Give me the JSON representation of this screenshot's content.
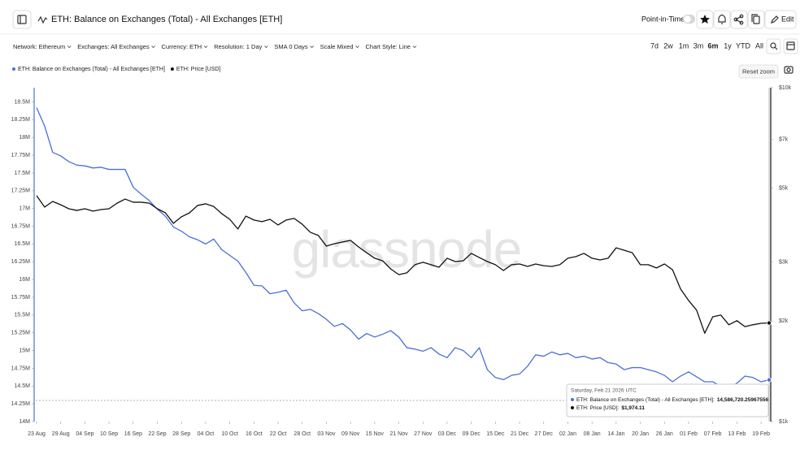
{
  "header": {
    "point_in_time": "Point-in-Time",
    "edit": "Edit"
  },
  "toolbar": {
    "filters": [
      "Network: Ethereum",
      "Exchanges: All Exchanges",
      "Currency: ETH",
      "Resolution: 1 Day",
      "SMA 0 Days",
      "Scale Mixed",
      "Chart Style: Line"
    ],
    "ranges": [
      "7d",
      "2w",
      "1m",
      "3m",
      "6m",
      "1y",
      "YTD",
      "All"
    ],
    "active_range": 4,
    "reset_zoom": "Reset zoom"
  },
  "chart_data": {
    "type": "line",
    "title": "ETH: Balance on Exchanges (Total) - All Exchanges [ETH]",
    "watermark": "glassnode",
    "categories": [
      "23 Aug",
      null,
      null,
      "29 Aug",
      null,
      null,
      "04 Sep",
      null,
      null,
      "10 Sep",
      null,
      null,
      "16 Sep",
      null,
      null,
      "22 Sep",
      null,
      null,
      "28 Sep",
      null,
      null,
      "04 Oct",
      null,
      null,
      "10 Oct",
      null,
      null,
      "16 Oct",
      null,
      null,
      "22 Oct",
      null,
      null,
      "28 Oct",
      null,
      null,
      "03 Nov",
      null,
      null,
      "09 Nov",
      null,
      null,
      "15 Nov",
      null,
      null,
      "21 Nov",
      null,
      null,
      "27 Nov",
      null,
      null,
      "03 Dec",
      null,
      null,
      "09 Dec",
      null,
      null,
      "15 Dec",
      null,
      null,
      "21 Dec",
      null,
      null,
      "27 Dec",
      null,
      null,
      "02 Jan",
      null,
      null,
      "08 Jan",
      null,
      null,
      "14 Jan",
      null,
      null,
      "20 Jan",
      null,
      null,
      "26 Jan",
      null,
      null,
      "01 Feb",
      null,
      null,
      "07 Feb",
      null,
      null,
      "13 Feb",
      null,
      null,
      "19 Feb",
      null
    ],
    "series": [
      {
        "name": "ETH: Balance on Exchanges (Total) - All Exchanges [ETH]",
        "color": "#4a6fdc",
        "axis": "y",
        "values": [
          18420000,
          18160000,
          17790000,
          17740000,
          17660000,
          17610000,
          17600000,
          17570000,
          17580000,
          17550000,
          17550000,
          17550000,
          17300000,
          17200000,
          17110000,
          16990000,
          16890000,
          16740000,
          16680000,
          16600000,
          16560000,
          16500000,
          16570000,
          16420000,
          16340000,
          16260000,
          16100000,
          15920000,
          15910000,
          15800000,
          15820000,
          15850000,
          15670000,
          15560000,
          15580000,
          15520000,
          15440000,
          15340000,
          15380000,
          15290000,
          15160000,
          15240000,
          15190000,
          15230000,
          15280000,
          15190000,
          15040000,
          15020000,
          14990000,
          15040000,
          14950000,
          14900000,
          15040000,
          15000000,
          14900000,
          15040000,
          14730000,
          14620000,
          14590000,
          14650000,
          14670000,
          14780000,
          14940000,
          14920000,
          14980000,
          14940000,
          14960000,
          14900000,
          14920000,
          14880000,
          14900000,
          14830000,
          14810000,
          14730000,
          14760000,
          14760000,
          14730000,
          14700000,
          14650000,
          14560000,
          14640000,
          14700000,
          14630000,
          14560000,
          14560000,
          14500000,
          14480000,
          14540000,
          14640000,
          14620000,
          14560000,
          14586720.25967556
        ]
      },
      {
        "name": "ETH: Price [USD]",
        "color": "#111111",
        "axis": "y2",
        "values": [
          4750,
          4390,
          4565,
          4460,
          4340,
          4290,
          4340,
          4270,
          4315,
          4340,
          4510,
          4640,
          4540,
          4540,
          4510,
          4340,
          4220,
          3925,
          4105,
          4220,
          4440,
          4490,
          4410,
          4195,
          4035,
          3775,
          4125,
          4015,
          3970,
          4035,
          3880,
          4015,
          4060,
          3900,
          3690,
          3610,
          3355,
          3410,
          3450,
          3490,
          3335,
          3205,
          3085,
          3030,
          2865,
          2755,
          2790,
          2950,
          3000,
          2950,
          2900,
          3085,
          3015,
          3030,
          3190,
          3100,
          3015,
          2950,
          2835,
          2950,
          2965,
          2915,
          2965,
          2930,
          2915,
          2950,
          3085,
          3120,
          3190,
          3085,
          3050,
          3085,
          3315,
          3260,
          3205,
          2950,
          2950,
          2885,
          2965,
          2850,
          2495,
          2305,
          2155,
          1840,
          2060,
          2085,
          1950,
          2005,
          1925,
          1950,
          1970,
          1974.11
        ]
      }
    ],
    "ylim": [
      14000000,
      18700000
    ],
    "yticks": [
      {
        "value": 14000000,
        "label": "14M"
      },
      {
        "value": 14250000,
        "label": "14.25M"
      },
      {
        "value": 14500000,
        "label": "14.5M"
      },
      {
        "value": 14750000,
        "label": "14.75M"
      },
      {
        "value": 15000000,
        "label": "15M"
      },
      {
        "value": 15250000,
        "label": "15.25M"
      },
      {
        "value": 15500000,
        "label": "15.5M"
      },
      {
        "value": 15750000,
        "label": "15.75M"
      },
      {
        "value": 16000000,
        "label": "16M"
      },
      {
        "value": 16250000,
        "label": "16.25M"
      },
      {
        "value": 16500000,
        "label": "16.5M"
      },
      {
        "value": 16750000,
        "label": "16.75M"
      },
      {
        "value": 17000000,
        "label": "17M"
      },
      {
        "value": 17250000,
        "label": "17.25M"
      },
      {
        "value": 17500000,
        "label": "17.5M"
      },
      {
        "value": 17750000,
        "label": "17.75M"
      },
      {
        "value": 18000000,
        "label": "18M"
      },
      {
        "value": 18250000,
        "label": "18.25M"
      },
      {
        "value": 18500000,
        "label": "18.5M"
      }
    ],
    "y2lim": [
      1000,
      10000
    ],
    "y2log": true,
    "y2ticks": [
      {
        "value": 1000,
        "label": "$1k"
      },
      {
        "value": 2000,
        "label": "$2k"
      },
      {
        "value": 3000,
        "label": "$3k"
      },
      {
        "value": 5000,
        "label": "$5k"
      },
      {
        "value": 7000,
        "label": "$7k"
      },
      {
        "value": 10000,
        "label": "$10k"
      }
    ],
    "grid": false
  },
  "tooltip": {
    "date": "Saturday, Feb 21 2026 UTC",
    "rows": [
      {
        "label": "ETH: Balance on Exchanges (Total) - All Exchanges [ETH]:",
        "value": "14,586,720.25967556"
      },
      {
        "label": "ETH: Price [USD]:",
        "value": "$1,974.11"
      }
    ]
  }
}
